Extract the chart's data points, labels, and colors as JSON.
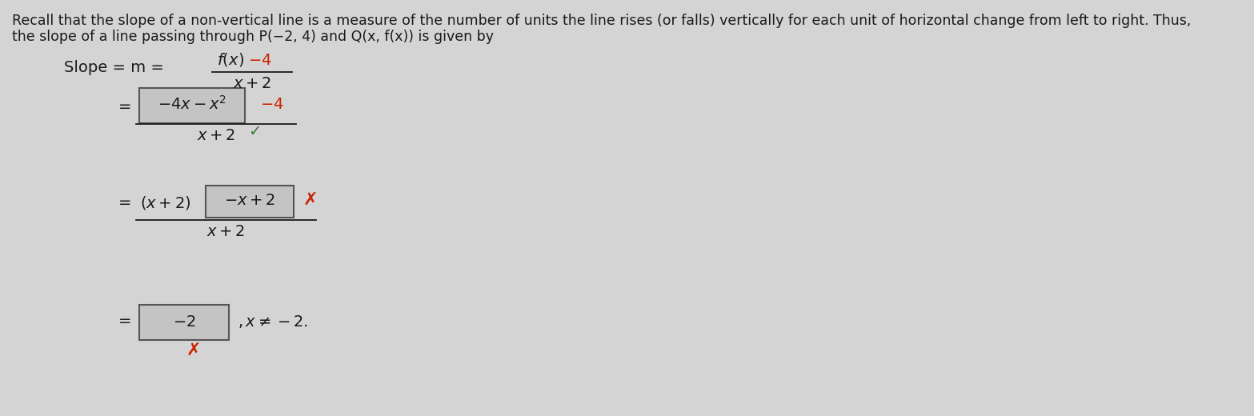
{
  "bg_color": "#d4d4d4",
  "text_color": "#1a1a1a",
  "red_color": "#cc2200",
  "green_color": "#3a7a3a",
  "box_fill": "#c4c4c4",
  "box_edge": "#555555",
  "header_line1": "Recall that the slope of a non-vertical line is a measure of the number of units the line rises (or falls) vertically for each unit of horizontal change from left to right. Thus,",
  "header_line2": "the slope of a line passing through P(−2, 4) and Q(x, f(x)) is given by",
  "figsize": [
    15.67,
    5.2
  ],
  "dpi": 100
}
